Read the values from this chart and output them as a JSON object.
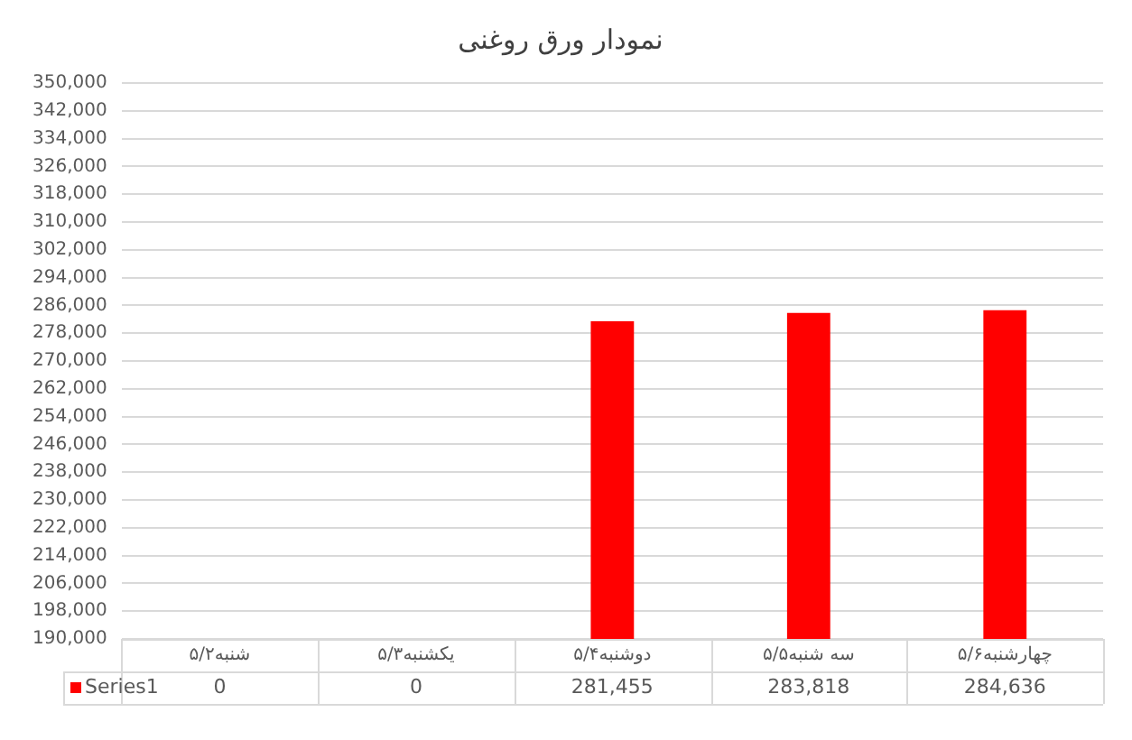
{
  "chart_data": {
    "type": "bar",
    "title": "نمودار ورق روغنی",
    "categories": [
      "شنبه۵/۲",
      "یکشنبه۵/۳",
      "دوشنبه۵/۴",
      "سه شنبه۵/۵",
      "چهارشنبه۵/۶"
    ],
    "series": [
      {
        "name": "Series1",
        "color": "#ff0000",
        "values": [
          null,
          null,
          281455,
          283818,
          284636
        ],
        "value_labels": [
          "0",
          "0",
          "281,455",
          "283,818",
          "284,636"
        ]
      }
    ],
    "ylim": [
      190000,
      350000
    ],
    "yticks": [
      {
        "value": 190000,
        "label": "190,000"
      },
      {
        "value": 198000,
        "label": "198,000"
      },
      {
        "value": 206000,
        "label": "206,000"
      },
      {
        "value": 214000,
        "label": "214,000"
      },
      {
        "value": 222000,
        "label": "222,000"
      },
      {
        "value": 230000,
        "label": "230,000"
      },
      {
        "value": 238000,
        "label": "238,000"
      },
      {
        "value": 246000,
        "label": "246,000"
      },
      {
        "value": 254000,
        "label": "254,000"
      },
      {
        "value": 262000,
        "label": "262,000"
      },
      {
        "value": 270000,
        "label": "270,000"
      },
      {
        "value": 278000,
        "label": "278,000"
      },
      {
        "value": 286000,
        "label": "286,000"
      },
      {
        "value": 294000,
        "label": "294,000"
      },
      {
        "value": 302000,
        "label": "302,000"
      },
      {
        "value": 310000,
        "label": "310,000"
      },
      {
        "value": 318000,
        "label": "318,000"
      },
      {
        "value": 326000,
        "label": "326,000"
      },
      {
        "value": 334000,
        "label": "334,000"
      },
      {
        "value": 342000,
        "label": "342,000"
      },
      {
        "value": 350000,
        "label": "350,000"
      }
    ],
    "grid": "y",
    "legend": "bottom"
  }
}
